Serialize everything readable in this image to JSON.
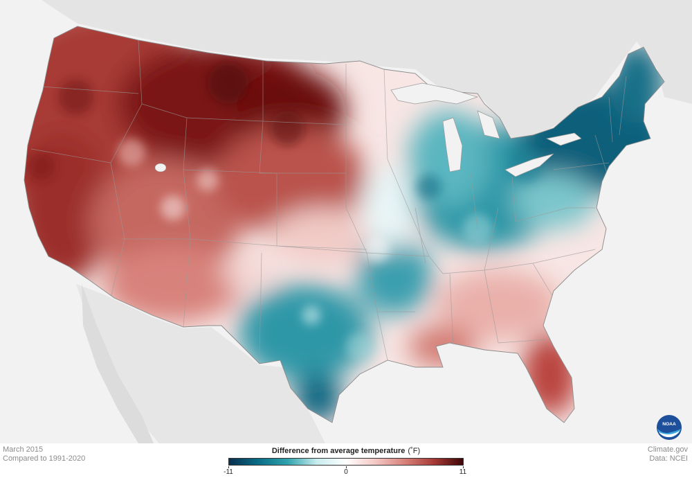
{
  "map": {
    "date_label": "March 2015",
    "baseline_label": "Compared to 1991-2020",
    "credit_site": "Climate.gov",
    "credit_data": "Data: NCEI",
    "logo_text": "NOAA"
  },
  "legend": {
    "title": "Difference from average temperature",
    "unit": "(˚F)",
    "min": -11,
    "mid": 0,
    "max": 11,
    "tick_labels": [
      "-11",
      "0",
      "11"
    ],
    "colors": [
      "#08304f",
      "#0a6d86",
      "#2fa3ad",
      "#c8ecee",
      "#ffffff",
      "#f4c8c4",
      "#d8827b",
      "#a83a36",
      "#3d0608"
    ]
  },
  "regions": [
    {
      "name": "pacific-northwest",
      "anomaly": 8
    },
    {
      "name": "northern-rockies-plains",
      "anomaly": 10
    },
    {
      "name": "california-nevada",
      "anomaly": 8
    },
    {
      "name": "southwest",
      "anomaly": 5
    },
    {
      "name": "central-plains",
      "anomaly": 4
    },
    {
      "name": "upper-midwest",
      "anomaly": 2
    },
    {
      "name": "great-lakes-ohio-valley",
      "anomaly": -6
    },
    {
      "name": "northeast",
      "anomaly": -9
    },
    {
      "name": "south-central-texas",
      "anomaly": -5
    },
    {
      "name": "southeast",
      "anomaly": 3
    },
    {
      "name": "florida",
      "anomaly": 6
    }
  ]
}
